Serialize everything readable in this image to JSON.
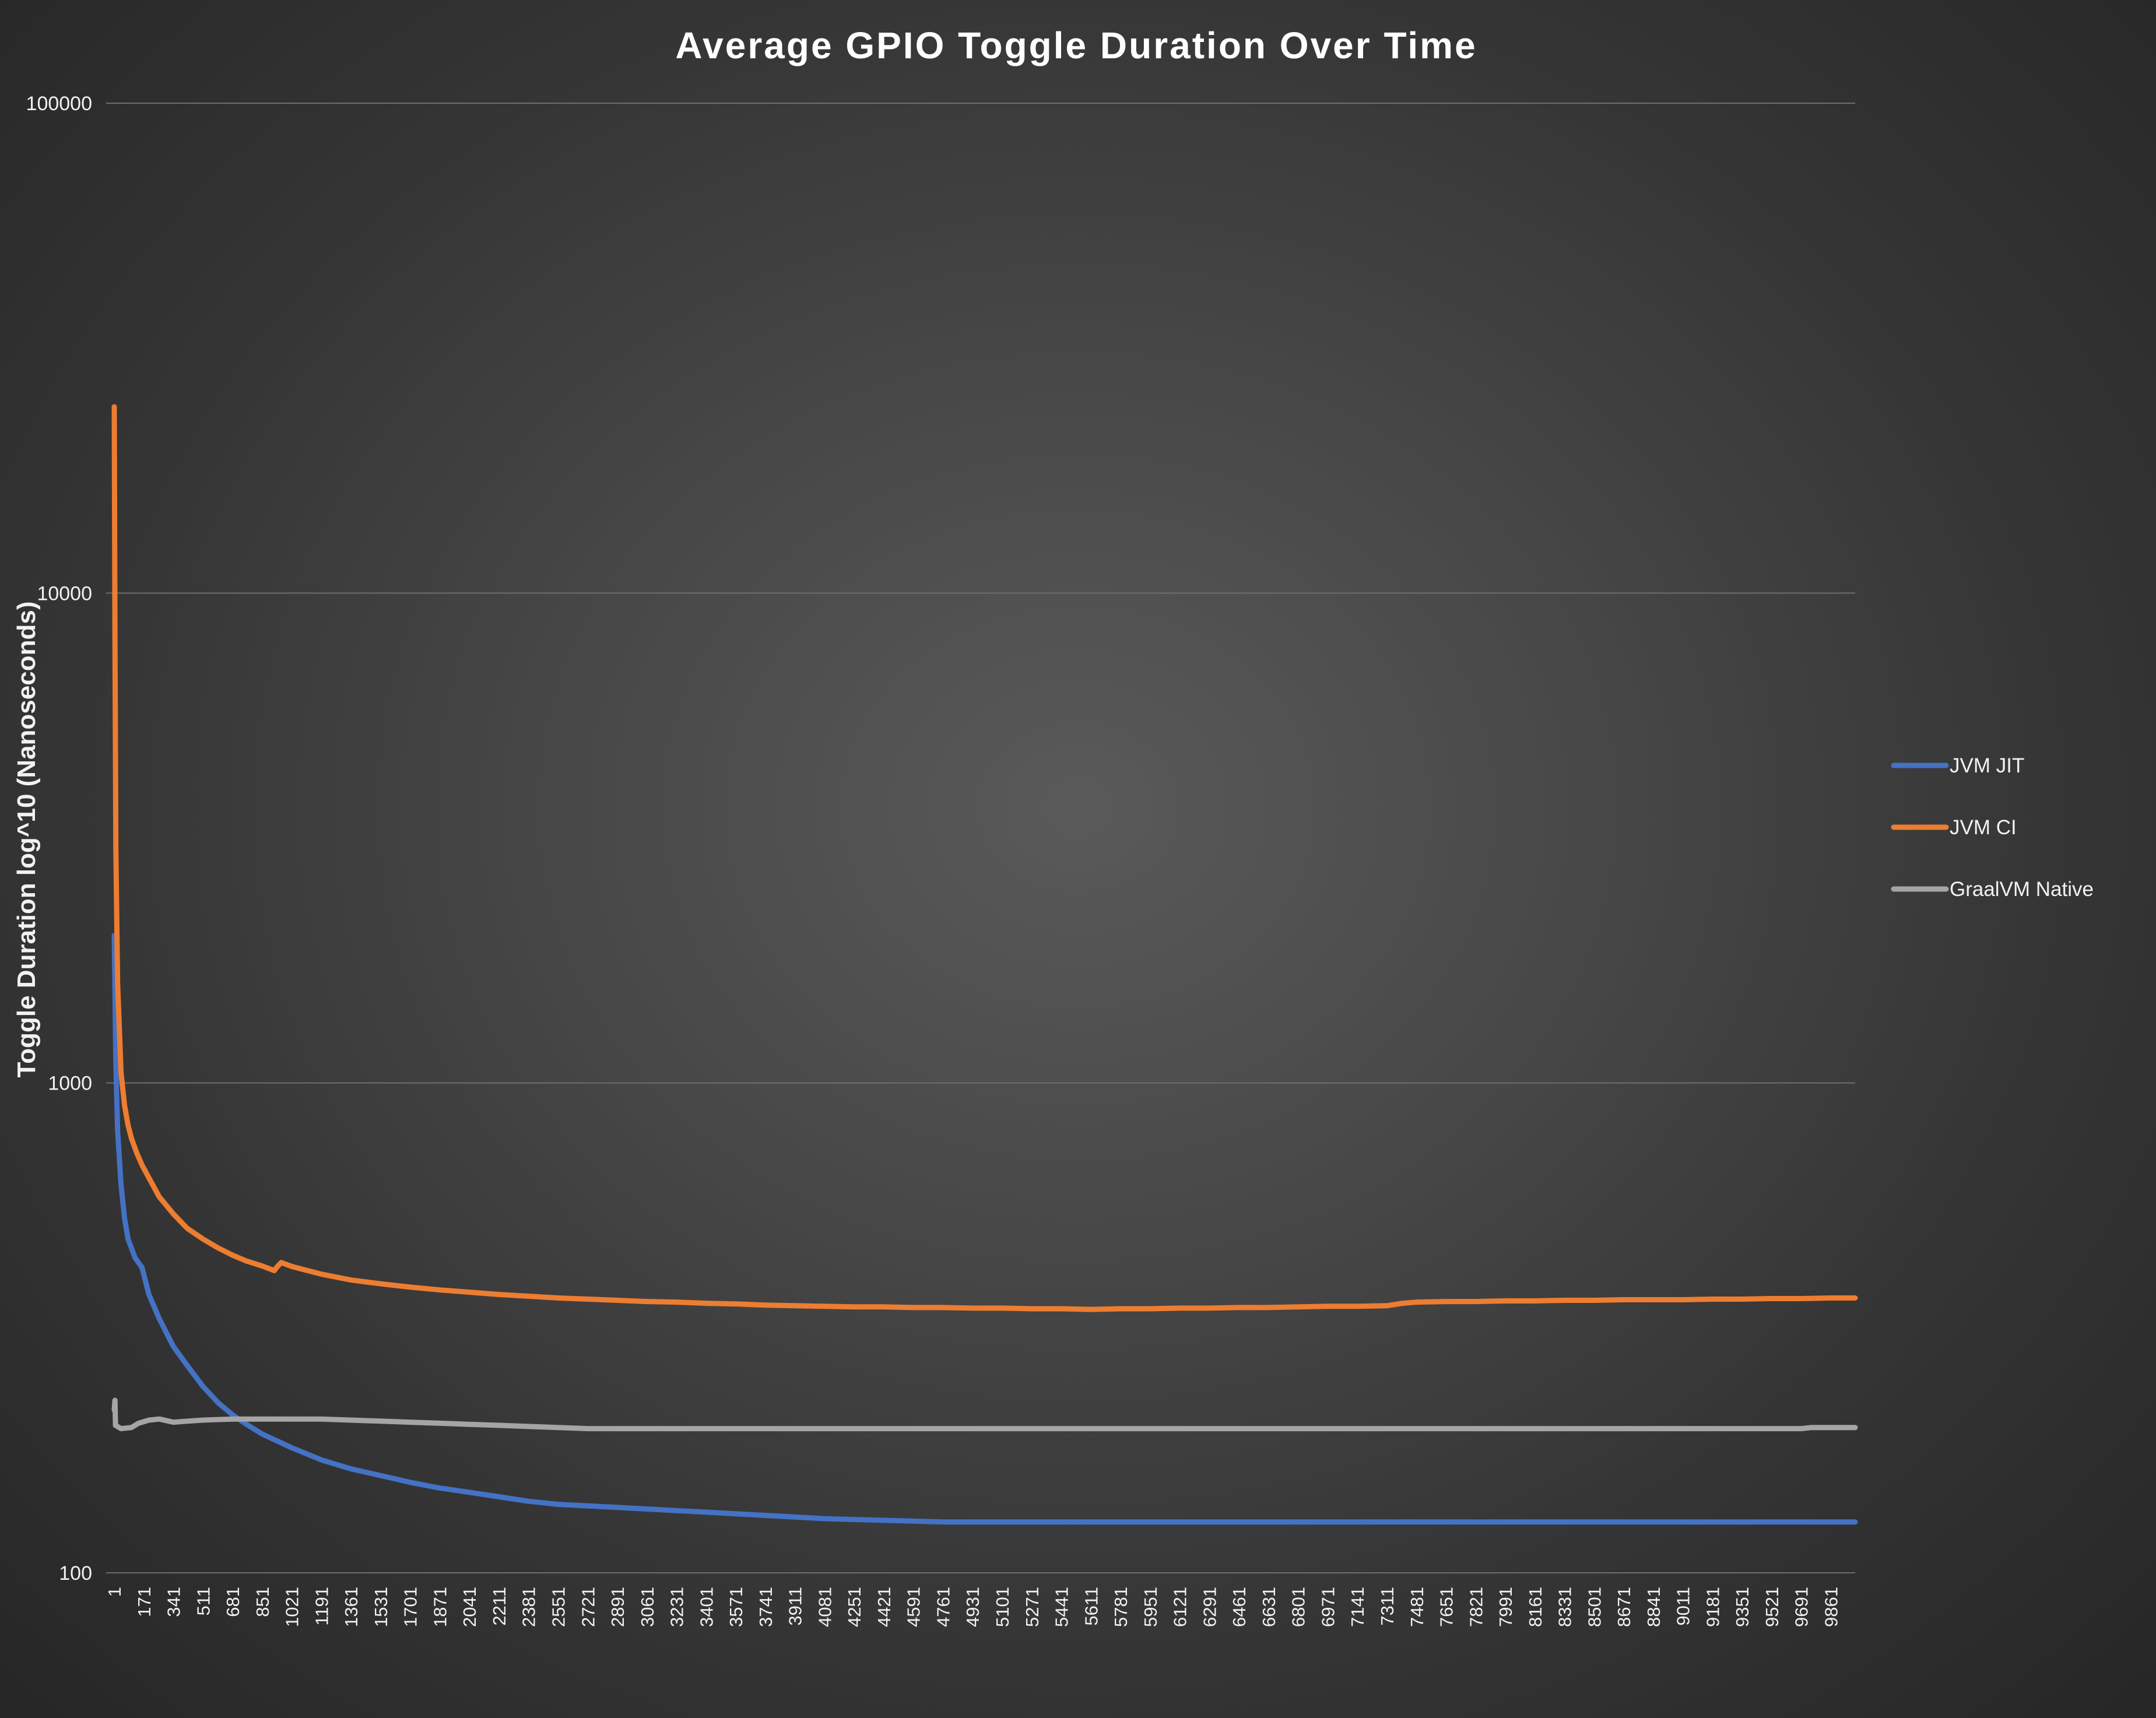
{
  "chart_data": {
    "type": "line",
    "title": "Average GPIO Toggle Duration Over Time",
    "ylabel": "Toggle Duration log^10 (Nanoseconds)",
    "xlabel": "",
    "y_scale": "log10",
    "ylim": [
      100,
      100000
    ],
    "y_ticks": [
      "100",
      "1000",
      "10000",
      "100000"
    ],
    "x_range": [
      1,
      10000
    ],
    "x_ticks": [
      "1",
      "171",
      "341",
      "511",
      "681",
      "851",
      "1021",
      "1191",
      "1361",
      "1531",
      "1701",
      "1871",
      "2041",
      "2211",
      "2381",
      "2551",
      "2721",
      "2891",
      "3061",
      "3231",
      "3401",
      "3571",
      "3741",
      "3911",
      "4081",
      "4251",
      "4421",
      "4591",
      "4761",
      "4931",
      "5101",
      "5271",
      "5441",
      "5611",
      "5781",
      "5951",
      "6121",
      "6291",
      "6461",
      "6631",
      "6801",
      "6971",
      "7141",
      "7311",
      "7481",
      "7651",
      "7821",
      "7991",
      "8161",
      "8331",
      "8501",
      "8671",
      "8841",
      "9011",
      "9181",
      "9351",
      "9521",
      "9691",
      "9861"
    ],
    "grid": true,
    "legend_position": "right",
    "series": [
      {
        "name": "JVM JIT",
        "color": "#4472c4",
        "points": [
          [
            1,
            2000
          ],
          [
            10,
            1100
          ],
          [
            20,
            800
          ],
          [
            40,
            620
          ],
          [
            60,
            530
          ],
          [
            80,
            480
          ],
          [
            100,
            460
          ],
          [
            120,
            440
          ],
          [
            140,
            430
          ],
          [
            160,
            420
          ],
          [
            200,
            370
          ],
          [
            260,
            330
          ],
          [
            340,
            290
          ],
          [
            420,
            265
          ],
          [
            511,
            240
          ],
          [
            600,
            222
          ],
          [
            681,
            210
          ],
          [
            760,
            201
          ],
          [
            851,
            192
          ],
          [
            1021,
            180
          ],
          [
            1191,
            170
          ],
          [
            1361,
            163
          ],
          [
            1531,
            158
          ],
          [
            1701,
            153
          ],
          [
            1871,
            149
          ],
          [
            2041,
            146
          ],
          [
            2211,
            143
          ],
          [
            2381,
            140
          ],
          [
            2551,
            138
          ],
          [
            2721,
            137
          ],
          [
            2891,
            136
          ],
          [
            3061,
            135
          ],
          [
            3231,
            134
          ],
          [
            3401,
            133
          ],
          [
            3571,
            132
          ],
          [
            3741,
            131
          ],
          [
            3911,
            130
          ],
          [
            4081,
            129
          ],
          [
            4251,
            128.5
          ],
          [
            4421,
            128
          ],
          [
            4591,
            127.5
          ],
          [
            4761,
            127
          ],
          [
            5101,
            127
          ],
          [
            5441,
            127
          ],
          [
            5781,
            127
          ],
          [
            6121,
            127
          ],
          [
            6461,
            127
          ],
          [
            6801,
            127
          ],
          [
            7141,
            127
          ],
          [
            7481,
            127
          ],
          [
            7821,
            127
          ],
          [
            8161,
            127
          ],
          [
            8501,
            127
          ],
          [
            8841,
            127
          ],
          [
            9181,
            127
          ],
          [
            9521,
            127
          ],
          [
            9861,
            127
          ],
          [
            10000,
            127
          ]
        ]
      },
      {
        "name": "JVM CI",
        "color": "#ed7d31",
        "points": [
          [
            1,
            24000
          ],
          [
            5,
            8000
          ],
          [
            10,
            3000
          ],
          [
            20,
            1600
          ],
          [
            40,
            1050
          ],
          [
            60,
            900
          ],
          [
            80,
            820
          ],
          [
            100,
            770
          ],
          [
            130,
            720
          ],
          [
            160,
            680
          ],
          [
            200,
            640
          ],
          [
            260,
            585
          ],
          [
            341,
            540
          ],
          [
            420,
            505
          ],
          [
            511,
            480
          ],
          [
            600,
            460
          ],
          [
            681,
            445
          ],
          [
            760,
            433
          ],
          [
            851,
            423
          ],
          [
            920,
            414
          ],
          [
            938,
            422
          ],
          [
            960,
            430
          ],
          [
            1021,
            422
          ],
          [
            1191,
            407
          ],
          [
            1361,
            396
          ],
          [
            1531,
            389
          ],
          [
            1701,
            383
          ],
          [
            1871,
            378
          ],
          [
            2041,
            374
          ],
          [
            2211,
            370
          ],
          [
            2381,
            367
          ],
          [
            2551,
            364
          ],
          [
            2721,
            362
          ],
          [
            2891,
            360
          ],
          [
            3061,
            358
          ],
          [
            3231,
            357
          ],
          [
            3401,
            355
          ],
          [
            3571,
            354
          ],
          [
            3741,
            352
          ],
          [
            3911,
            351
          ],
          [
            4081,
            350
          ],
          [
            4251,
            349
          ],
          [
            4421,
            349
          ],
          [
            4591,
            348
          ],
          [
            4761,
            348
          ],
          [
            4931,
            347
          ],
          [
            5101,
            347
          ],
          [
            5271,
            346
          ],
          [
            5441,
            346
          ],
          [
            5611,
            345
          ],
          [
            5781,
            346
          ],
          [
            5951,
            346
          ],
          [
            6121,
            347
          ],
          [
            6291,
            347
          ],
          [
            6461,
            348
          ],
          [
            6631,
            348
          ],
          [
            6801,
            349
          ],
          [
            6971,
            350
          ],
          [
            7141,
            350
          ],
          [
            7311,
            351
          ],
          [
            7400,
            355
          ],
          [
            7481,
            357
          ],
          [
            7651,
            358
          ],
          [
            7821,
            358
          ],
          [
            7991,
            359
          ],
          [
            8161,
            359
          ],
          [
            8331,
            360
          ],
          [
            8501,
            360
          ],
          [
            8671,
            361
          ],
          [
            8841,
            361
          ],
          [
            9011,
            361
          ],
          [
            9181,
            362
          ],
          [
            9351,
            362
          ],
          [
            9521,
            363
          ],
          [
            9691,
            363
          ],
          [
            9861,
            364
          ],
          [
            10000,
            364
          ]
        ]
      },
      {
        "name": "GraalVM Native",
        "color": "#a5a5a5",
        "points": [
          [
            1,
            215
          ],
          [
            5,
            225
          ],
          [
            8,
            200
          ],
          [
            40,
            197
          ],
          [
            100,
            198
          ],
          [
            140,
            202
          ],
          [
            200,
            205
          ],
          [
            260,
            206
          ],
          [
            341,
            203
          ],
          [
            420,
            204
          ],
          [
            511,
            205
          ],
          [
            681,
            206
          ],
          [
            851,
            206
          ],
          [
            1021,
            206
          ],
          [
            1191,
            206
          ],
          [
            1361,
            205
          ],
          [
            1531,
            204
          ],
          [
            1701,
            203
          ],
          [
            1871,
            202
          ],
          [
            2041,
            201
          ],
          [
            2211,
            200
          ],
          [
            2381,
            199
          ],
          [
            2551,
            198
          ],
          [
            2721,
            197
          ],
          [
            2891,
            197
          ],
          [
            3400,
            197
          ],
          [
            4000,
            197
          ],
          [
            5000,
            197
          ],
          [
            6000,
            197
          ],
          [
            7000,
            197
          ],
          [
            8000,
            197
          ],
          [
            9000,
            197
          ],
          [
            9691,
            197
          ],
          [
            9750,
            198
          ],
          [
            10000,
            198
          ]
        ]
      }
    ]
  }
}
